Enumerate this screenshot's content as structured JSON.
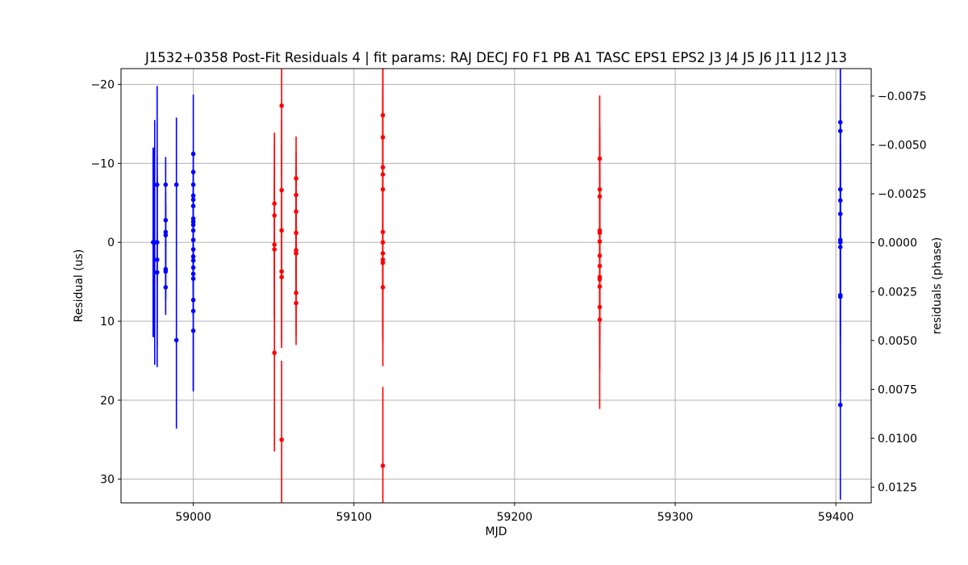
{
  "chart_data": {
    "type": "scatter",
    "title": "J1532+0358 Post-Fit Residuals 4 | fit params: RAJ DECJ F0 F1 PB A1 TASC EPS1 EPS2 J3 J4 J5 J6 J11 J12 J13",
    "xlabel": "MJD",
    "ylabel": "Residual (us)",
    "y2label": "residuals (phase)",
    "xlim": [
      58955,
      59422
    ],
    "ylim": [
      33,
      -22
    ],
    "y2lim": [
      0.0133,
      -0.0089
    ],
    "y_inverted": true,
    "grid": true,
    "xticks": [
      59000,
      59100,
      59200,
      59300,
      59400
    ],
    "yticks": [
      -20,
      -10,
      0,
      10,
      20,
      30
    ],
    "y2ticks": [
      -0.0075,
      -0.005,
      -0.0025,
      0.0,
      0.0025,
      0.005,
      0.0075,
      0.01,
      0.0125
    ],
    "xtick_labels": [
      "59000",
      "59100",
      "59200",
      "59300",
      "59400"
    ],
    "ytick_labels": [
      "−20",
      "−10",
      "0",
      "10",
      "20",
      "30"
    ],
    "y2tick_labels": [
      "−0.0075",
      "−0.0050",
      "−0.0025",
      "0.0000",
      "0.0025",
      "0.0050",
      "0.0075",
      "0.0100",
      "0.0125"
    ],
    "series": [
      {
        "color": "#0000ff",
        "points": [
          {
            "x": 58975.0,
            "y": 0.0,
            "err": 12.0
          },
          {
            "x": 58975.5,
            "y": 0.0,
            "err": 12.0
          },
          {
            "x": 58976.0,
            "y": 0.0,
            "err": 15.5
          },
          {
            "x": 58977.5,
            "y": -7.3,
            "err": 12.5
          },
          {
            "x": 58977.5,
            "y": 0.0,
            "err": 11.0
          },
          {
            "x": 58977.5,
            "y": 2.2,
            "err": 11.0
          },
          {
            "x": 58977.5,
            "y": 3.8,
            "err": 12.0
          },
          {
            "x": 58982.8,
            "y": -7.3,
            "err": 3.5
          },
          {
            "x": 58982.8,
            "y": -2.8,
            "err": 3.5
          },
          {
            "x": 58982.8,
            "y": -1.3,
            "err": 3.5
          },
          {
            "x": 58982.8,
            "y": -0.9,
            "err": 3.5
          },
          {
            "x": 58982.8,
            "y": 3.4,
            "err": 3.5
          },
          {
            "x": 58982.8,
            "y": 3.7,
            "err": 3.5
          },
          {
            "x": 58982.8,
            "y": 5.7,
            "err": 3.5
          },
          {
            "x": 58989.5,
            "y": -7.3,
            "err": 8.5
          },
          {
            "x": 58989.5,
            "y": 12.4,
            "err": 11.2
          },
          {
            "x": 59000.0,
            "y": -11.2,
            "err": 7.5
          },
          {
            "x": 59000.0,
            "y": -8.9,
            "err": 2.0
          },
          {
            "x": 59000.0,
            "y": -7.3,
            "err": 2.0
          },
          {
            "x": 59000.0,
            "y": -5.9,
            "err": 2.0
          },
          {
            "x": 59000.0,
            "y": -5.4,
            "err": 2.0
          },
          {
            "x": 59000.0,
            "y": -4.6,
            "err": 2.0
          },
          {
            "x": 59000.0,
            "y": -3.0,
            "err": 2.0
          },
          {
            "x": 59000.0,
            "y": -2.6,
            "err": 2.0
          },
          {
            "x": 59000.0,
            "y": -2.2,
            "err": 2.0
          },
          {
            "x": 59000.0,
            "y": -1.5,
            "err": 2.0
          },
          {
            "x": 59000.0,
            "y": -0.3,
            "err": 2.0
          },
          {
            "x": 59000.0,
            "y": 0.9,
            "err": 2.0
          },
          {
            "x": 59000.0,
            "y": 1.8,
            "err": 2.0
          },
          {
            "x": 59000.0,
            "y": 2.3,
            "err": 2.0
          },
          {
            "x": 59000.0,
            "y": 3.2,
            "err": 2.0
          },
          {
            "x": 59000.0,
            "y": 4.0,
            "err": 2.0
          },
          {
            "x": 59000.0,
            "y": 4.6,
            "err": 2.0
          },
          {
            "x": 59000.0,
            "y": 7.3,
            "err": 2.0
          },
          {
            "x": 59000.0,
            "y": 8.7,
            "err": 10.2
          },
          {
            "x": 59000.0,
            "y": 11.2,
            "err": 7.5
          },
          {
            "x": 59402.8,
            "y": -15.2,
            "err": 12.0
          },
          {
            "x": 59402.8,
            "y": -14.1,
            "err": 12.0
          },
          {
            "x": 59402.8,
            "y": -6.7,
            "err": 12.0
          },
          {
            "x": 59402.8,
            "y": -5.3,
            "err": 12.0
          },
          {
            "x": 59402.8,
            "y": -3.6,
            "err": 12.0
          },
          {
            "x": 59402.8,
            "y": -0.3,
            "err": 12.0
          },
          {
            "x": 59402.8,
            "y": 0.0,
            "err": 12.0
          },
          {
            "x": 59402.8,
            "y": 0.6,
            "err": 12.0
          },
          {
            "x": 59402.8,
            "y": 6.7,
            "err": 12.0
          },
          {
            "x": 59402.8,
            "y": 6.9,
            "err": 12.0
          },
          {
            "x": 59402.8,
            "y": 20.6,
            "err": 12.0
          }
        ]
      },
      {
        "color": "#ff0000",
        "points": [
          {
            "x": 59050.5,
            "y": -4.9,
            "err": 9.0
          },
          {
            "x": 59050.5,
            "y": -3.4,
            "err": 9.0
          },
          {
            "x": 59050.5,
            "y": 0.3,
            "err": 9.0
          },
          {
            "x": 59050.5,
            "y": 0.9,
            "err": 9.0
          },
          {
            "x": 59050.5,
            "y": 14.0,
            "err": 12.5
          },
          {
            "x": 59055.0,
            "y": -17.3,
            "err": 9.0
          },
          {
            "x": 59055.0,
            "y": -6.6,
            "err": 9.0
          },
          {
            "x": 59055.0,
            "y": -1.5,
            "err": 11.0
          },
          {
            "x": 59055.0,
            "y": 3.7,
            "err": 9.0
          },
          {
            "x": 59055.0,
            "y": 4.4,
            "err": 9.0
          },
          {
            "x": 59055.0,
            "y": 25.0,
            "err": 10.0
          },
          {
            "x": 59064.0,
            "y": -8.1,
            "err": 5.3
          },
          {
            "x": 59064.0,
            "y": -6.0,
            "err": 5.3
          },
          {
            "x": 59064.0,
            "y": -3.9,
            "err": 5.3
          },
          {
            "x": 59064.0,
            "y": -1.2,
            "err": 5.3
          },
          {
            "x": 59064.0,
            "y": 1.0,
            "err": 5.3
          },
          {
            "x": 59064.0,
            "y": 1.4,
            "err": 5.3
          },
          {
            "x": 59064.0,
            "y": 6.4,
            "err": 5.3
          },
          {
            "x": 59064.0,
            "y": 7.7,
            "err": 5.3
          },
          {
            "x": 59118.0,
            "y": -16.1,
            "err": 10.0
          },
          {
            "x": 59118.0,
            "y": -13.3,
            "err": 10.0
          },
          {
            "x": 59118.0,
            "y": -9.5,
            "err": 10.0
          },
          {
            "x": 59118.0,
            "y": -8.6,
            "err": 10.0
          },
          {
            "x": 59118.0,
            "y": -6.7,
            "err": 10.0
          },
          {
            "x": 59118.0,
            "y": -1.3,
            "err": 10.0
          },
          {
            "x": 59118.0,
            "y": 0.0,
            "err": 10.0
          },
          {
            "x": 59118.0,
            "y": 1.4,
            "err": 10.0
          },
          {
            "x": 59118.0,
            "y": 2.2,
            "err": 10.0
          },
          {
            "x": 59118.0,
            "y": 2.6,
            "err": 10.0
          },
          {
            "x": 59118.0,
            "y": 5.7,
            "err": 10.0
          },
          {
            "x": 59118.0,
            "y": 28.3,
            "err": 10.0
          },
          {
            "x": 59253.0,
            "y": -10.6,
            "err": 8.0
          },
          {
            "x": 59253.0,
            "y": -6.7,
            "err": 8.0
          },
          {
            "x": 59253.0,
            "y": -5.8,
            "err": 8.0
          },
          {
            "x": 59253.0,
            "y": -1.5,
            "err": 8.0
          },
          {
            "x": 59253.0,
            "y": -1.2,
            "err": 8.0
          },
          {
            "x": 59253.0,
            "y": -0.1,
            "err": 8.0
          },
          {
            "x": 59253.0,
            "y": 1.7,
            "err": 8.0
          },
          {
            "x": 59253.0,
            "y": 3.0,
            "err": 8.0
          },
          {
            "x": 59253.0,
            "y": 4.4,
            "err": 8.0
          },
          {
            "x": 59253.0,
            "y": 4.7,
            "err": 8.0
          },
          {
            "x": 59253.0,
            "y": 5.6,
            "err": 8.0
          },
          {
            "x": 59253.0,
            "y": 8.2,
            "err": 8.0
          },
          {
            "x": 59253.0,
            "y": 9.8,
            "err": 11.3
          }
        ]
      }
    ]
  }
}
